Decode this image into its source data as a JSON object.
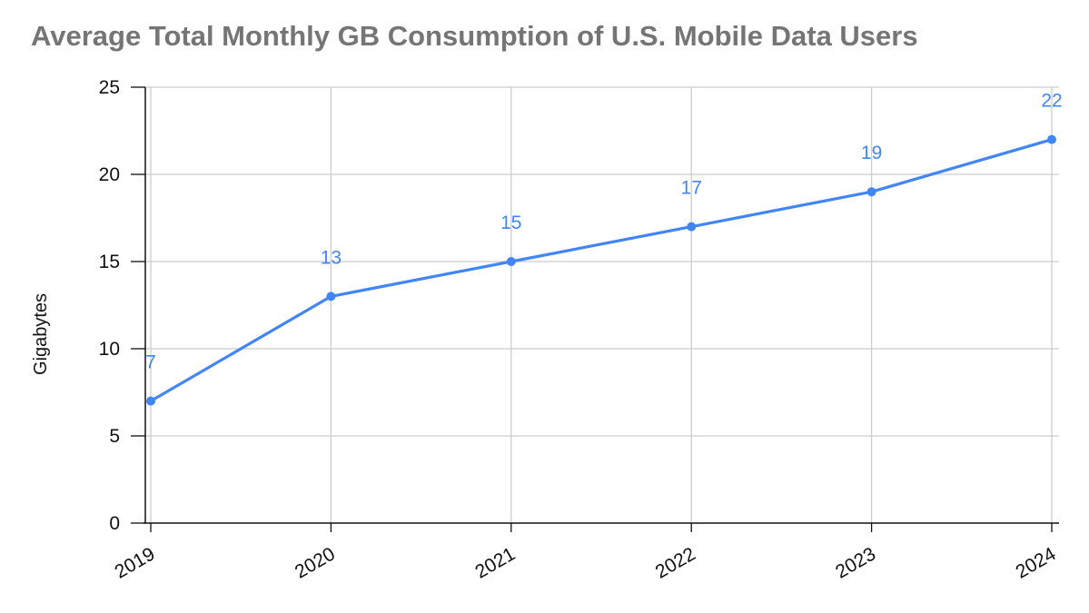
{
  "chart_data": {
    "type": "line",
    "title": "Average Total Monthly GB Consumption of U.S. Mobile Data Users",
    "xlabel": "",
    "ylabel": "Gigabytes",
    "categories": [
      "2019",
      "2020",
      "2021",
      "2022",
      "2023",
      "2024"
    ],
    "series": [
      {
        "values": [
          7,
          13,
          15,
          17,
          19,
          22
        ]
      }
    ],
    "ylim": [
      0,
      25
    ],
    "yticks": [
      0,
      5,
      10,
      15,
      20,
      25
    ],
    "grid": true,
    "data_labels": true,
    "line_color": "#4285f4"
  }
}
